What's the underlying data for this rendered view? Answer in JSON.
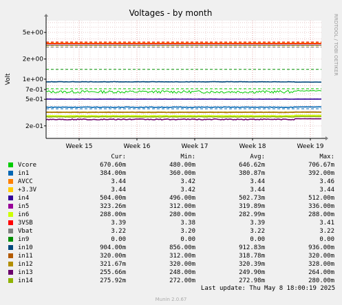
{
  "chart_data": {
    "type": "line",
    "title": "Voltages - by month",
    "ylabel": "Volt",
    "yscale": "log",
    "ylim": [
      0.13,
      7.5
    ],
    "yticks": [
      {
        "label": "5e+00",
        "value": 5
      },
      {
        "label": "2e+00",
        "value": 2
      },
      {
        "label": "1e+00",
        "value": 1
      },
      {
        "label": "7e-01",
        "value": 0.7
      },
      {
        "label": "5e-01",
        "value": 0.5
      },
      {
        "label": "2e-01",
        "value": 0.2
      }
    ],
    "xticks": [
      "Week 15",
      "Week 16",
      "Week 17",
      "Week 18",
      "Week 19"
    ],
    "grid": true,
    "side_label": "RRDTOOL / TOBI OETIKER",
    "series": [
      {
        "name": "Vcore",
        "color": "#00cc00",
        "cur": "670.60m",
        "min": "480.00m",
        "avg": "646.62m",
        "max": "706.67m",
        "level": 0.6466,
        "noise": 0.03,
        "end": 0.67,
        "warn": 0.72
      },
      {
        "name": "in1",
        "color": "#0066b3",
        "cur": "384.00m",
        "min": "360.00m",
        "avg": "380.87m",
        "max": "392.00m",
        "level": 0.381,
        "noise": 0.004,
        "end": 0.384,
        "warn": 0.36
      },
      {
        "name": "AVCC",
        "color": "#ff8000",
        "cur": "3.44",
        "min": "3.42",
        "avg": "3.44",
        "max": "3.46",
        "level": 3.44,
        "noise": 0.0,
        "end": 3.44,
        "warn": 3.6
      },
      {
        "name": "+3.3V",
        "color": "#ffcc00",
        "cur": "3.44",
        "min": "3.42",
        "avg": "3.44",
        "max": "3.44",
        "level": 3.44,
        "noise": 0.0,
        "end": 3.44,
        "warn": 3.14
      },
      {
        "name": "in4",
        "color": "#330099",
        "cur": "504.00m",
        "min": "496.00m",
        "avg": "502.73m",
        "max": "512.00m",
        "level": 0.5027,
        "noise": 0.002,
        "end": 0.504,
        "warn": null
      },
      {
        "name": "in5",
        "color": "#990099",
        "cur": "323.26m",
        "min": "312.00m",
        "avg": "319.89m",
        "max": "336.00m",
        "level": 0.3199,
        "noise": 0.003,
        "end": 0.323,
        "warn": null
      },
      {
        "name": "in6",
        "color": "#ccff00",
        "cur": "288.00m",
        "min": "280.00m",
        "avg": "282.99m",
        "max": "288.00m",
        "level": 0.283,
        "noise": 0.002,
        "end": 0.288,
        "warn": null
      },
      {
        "name": "3VSB",
        "color": "#ff0000",
        "cur": "3.39",
        "min": "3.38",
        "avg": "3.39",
        "max": "3.41",
        "level": 3.39,
        "noise": 0.0,
        "end": 3.39,
        "warn": 3.6
      },
      {
        "name": "Vbat",
        "color": "#808080",
        "cur": "3.22",
        "min": "3.20",
        "avg": "3.22",
        "max": "3.22",
        "level": 3.22,
        "noise": 0.0,
        "end": 3.22,
        "warn": 3.0
      },
      {
        "name": "in9",
        "color": "#008f00",
        "cur": "0.00",
        "min": "0.00",
        "avg": "0.00",
        "max": "0.00",
        "level": 0,
        "noise": 0,
        "end": 0,
        "warn": 1.4
      },
      {
        "name": "in10",
        "color": "#00487d",
        "cur": "904.00m",
        "min": "856.00m",
        "avg": "912.83m",
        "max": "936.00m",
        "level": 0.9128,
        "noise": 0.006,
        "end": 0.904,
        "warn": null
      },
      {
        "name": "in11",
        "color": "#b35a00",
        "cur": "320.00m",
        "min": "312.00m",
        "avg": "318.78m",
        "max": "320.00m",
        "level": 0.3188,
        "noise": 0.002,
        "end": 0.32,
        "warn": 3.5
      },
      {
        "name": "in12",
        "color": "#b38f00",
        "cur": "321.67m",
        "min": "320.00m",
        "avg": "320.39m",
        "max": "328.00m",
        "level": 0.3204,
        "noise": 0.002,
        "end": 0.3217,
        "warn": null
      },
      {
        "name": "in13",
        "color": "#6b006b",
        "cur": "255.66m",
        "min": "248.00m",
        "avg": "249.90m",
        "max": "264.00m",
        "level": 0.2499,
        "noise": 0.004,
        "end": 0.2557,
        "warn": null
      },
      {
        "name": "in14",
        "color": "#8fb300",
        "cur": "275.92m",
        "min": "272.00m",
        "avg": "272.98m",
        "max": "280.00m",
        "level": 0.273,
        "noise": 0.002,
        "end": 0.2759,
        "warn": null
      }
    ]
  },
  "legend_header": {
    "cur": "Cur:",
    "min": "Min:",
    "avg": "Avg:",
    "max": "Max:"
  },
  "footer": "Last update: Thu May  8 18:00:19 2025",
  "munin_version": "Munin 2.0.67"
}
